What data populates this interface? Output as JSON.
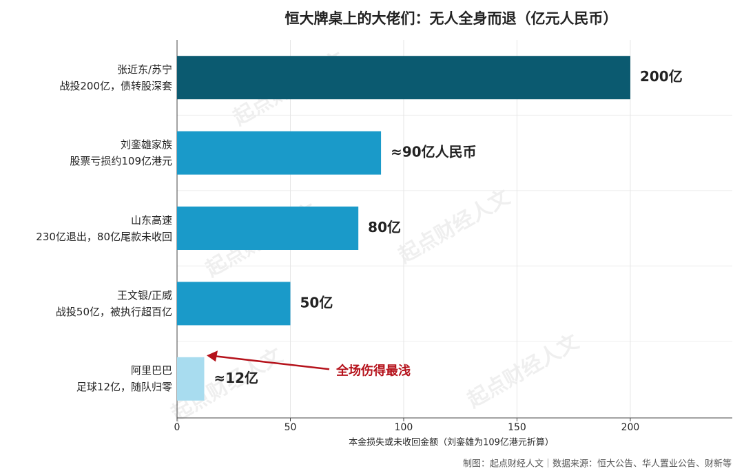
{
  "chart_data": {
    "type": "barh",
    "title": "恒大牌桌上的大佬们：无人全身而退（亿元人民币）",
    "categories": [
      "张近东/苏宁\n战投200亿，债转股深套",
      "刘銮雄家族\n股票亏损约109亿港元",
      "山东高速\n230亿退出，80亿尾款未收回",
      "王文银/正威\n战投50亿，被执行超百亿",
      "阿里巴巴\n足球12亿，随队归零"
    ],
    "values": [
      200,
      90,
      80,
      50,
      12
    ],
    "value_labels": [
      "200亿",
      "≈90亿人民币",
      "80亿",
      "50亿",
      "≈12亿"
    ],
    "colors": [
      "#0b5a70",
      "#1a9ac9",
      "#1a9ac9",
      "#1a9ac9",
      "#a8dcef"
    ],
    "xlim": [
      0,
      245
    ],
    "xticks": [
      0,
      50,
      100,
      150,
      200
    ],
    "grid": true,
    "x_label": "本金损失或未收回金额（刘銮雄为109亿港元折算）",
    "annotation": "全场伤得最浅",
    "watermark": "起点财经人文",
    "source": "制图：起点财经人文｜数据来源：恒大公告、华人置业公告、财新等"
  }
}
